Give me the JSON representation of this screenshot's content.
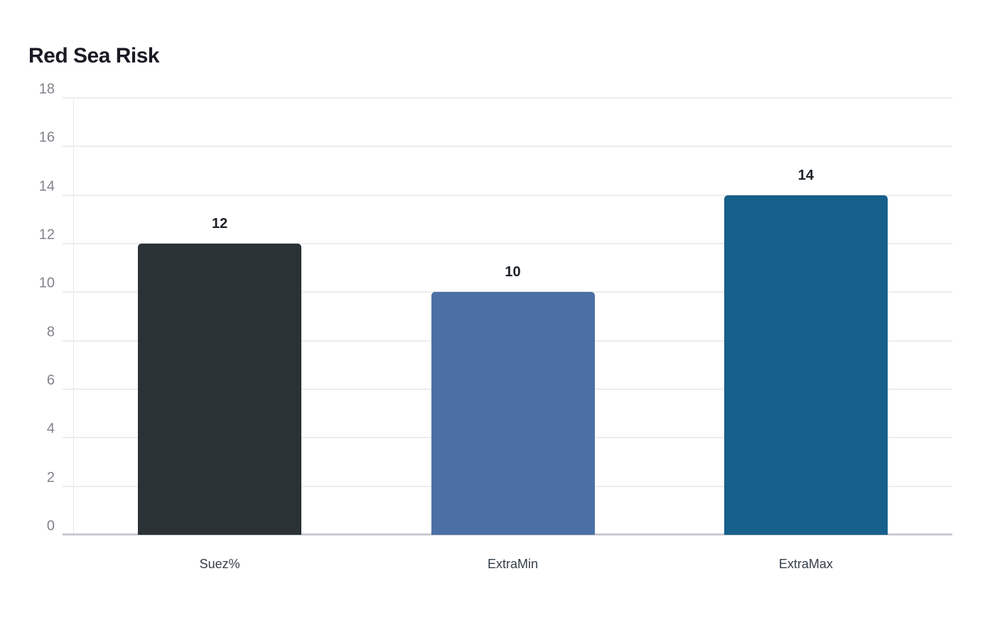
{
  "chart_data": {
    "type": "bar",
    "title": "Red Sea Risk",
    "categories": [
      "Suez%",
      "ExtraMin",
      "ExtraMax"
    ],
    "values": [
      12,
      10,
      14
    ],
    "data_labels": [
      "12",
      "10",
      "14"
    ],
    "bar_colors": [
      "#2b3236",
      "#4c70a6",
      "#16618b"
    ],
    "yticks": [
      0,
      2,
      4,
      6,
      8,
      10,
      12,
      14,
      16,
      18
    ],
    "ylim": [
      0,
      18
    ],
    "xlabel": "",
    "ylabel": "",
    "grid": true,
    "legend": false
  },
  "colors": {
    "background": "#ffffff",
    "title": "#1a1a24",
    "tick_label": "#82828a",
    "category_label": "#343e49",
    "value_label": "#1c2126",
    "gridline": "#ededee",
    "baseline": "#c8cbd0",
    "axis_dotted": "#d2d2d4"
  }
}
